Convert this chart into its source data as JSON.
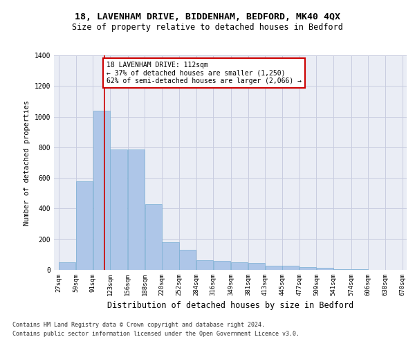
{
  "title1": "18, LAVENHAM DRIVE, BIDDENHAM, BEDFORD, MK40 4QX",
  "title2": "Size of property relative to detached houses in Bedford",
  "xlabel": "Distribution of detached houses by size in Bedford",
  "ylabel": "Number of detached properties",
  "footnote1": "Contains HM Land Registry data © Crown copyright and database right 2024.",
  "footnote2": "Contains public sector information licensed under the Open Government Licence v3.0.",
  "annotation_line1": "18 LAVENHAM DRIVE: 112sqm",
  "annotation_line2": "← 37% of detached houses are smaller (1,250)",
  "annotation_line3": "62% of semi-detached houses are larger (2,066) →",
  "bar_left_edges": [
    27,
    59,
    91,
    123,
    156,
    188,
    220,
    252,
    284,
    316,
    349,
    381,
    413,
    445,
    477,
    509,
    541,
    574,
    606,
    638
  ],
  "bar_widths": [
    32,
    32,
    32,
    33,
    32,
    32,
    32,
    32,
    32,
    33,
    32,
    32,
    32,
    32,
    32,
    32,
    33,
    32,
    32,
    32
  ],
  "bar_heights": [
    50,
    580,
    1040,
    785,
    785,
    430,
    180,
    130,
    65,
    60,
    50,
    45,
    28,
    28,
    20,
    13,
    5,
    3,
    1,
    1
  ],
  "bar_color": "#aec6e8",
  "bar_edgecolor": "#7aafd4",
  "grid_color": "#c8cce0",
  "bg_color": "#eaedf5",
  "red_line_x": 112,
  "red_line_color": "#cc0000",
  "ylim": [
    0,
    1400
  ],
  "yticks": [
    0,
    200,
    400,
    600,
    800,
    1000,
    1200,
    1400
  ],
  "xtick_labels": [
    "27sqm",
    "59sqm",
    "91sqm",
    "123sqm",
    "156sqm",
    "188sqm",
    "220sqm",
    "252sqm",
    "284sqm",
    "316sqm",
    "349sqm",
    "381sqm",
    "413sqm",
    "445sqm",
    "477sqm",
    "509sqm",
    "541sqm",
    "574sqm",
    "606sqm",
    "638sqm",
    "670sqm"
  ],
  "annotation_box_edgecolor": "#cc0000",
  "title1_fontsize": 9.5,
  "title2_fontsize": 8.5,
  "xlabel_fontsize": 8.5,
  "ylabel_fontsize": 7.5,
  "tick_fontsize": 6.5,
  "annotation_fontsize": 7.0,
  "footnote_fontsize": 6.0
}
